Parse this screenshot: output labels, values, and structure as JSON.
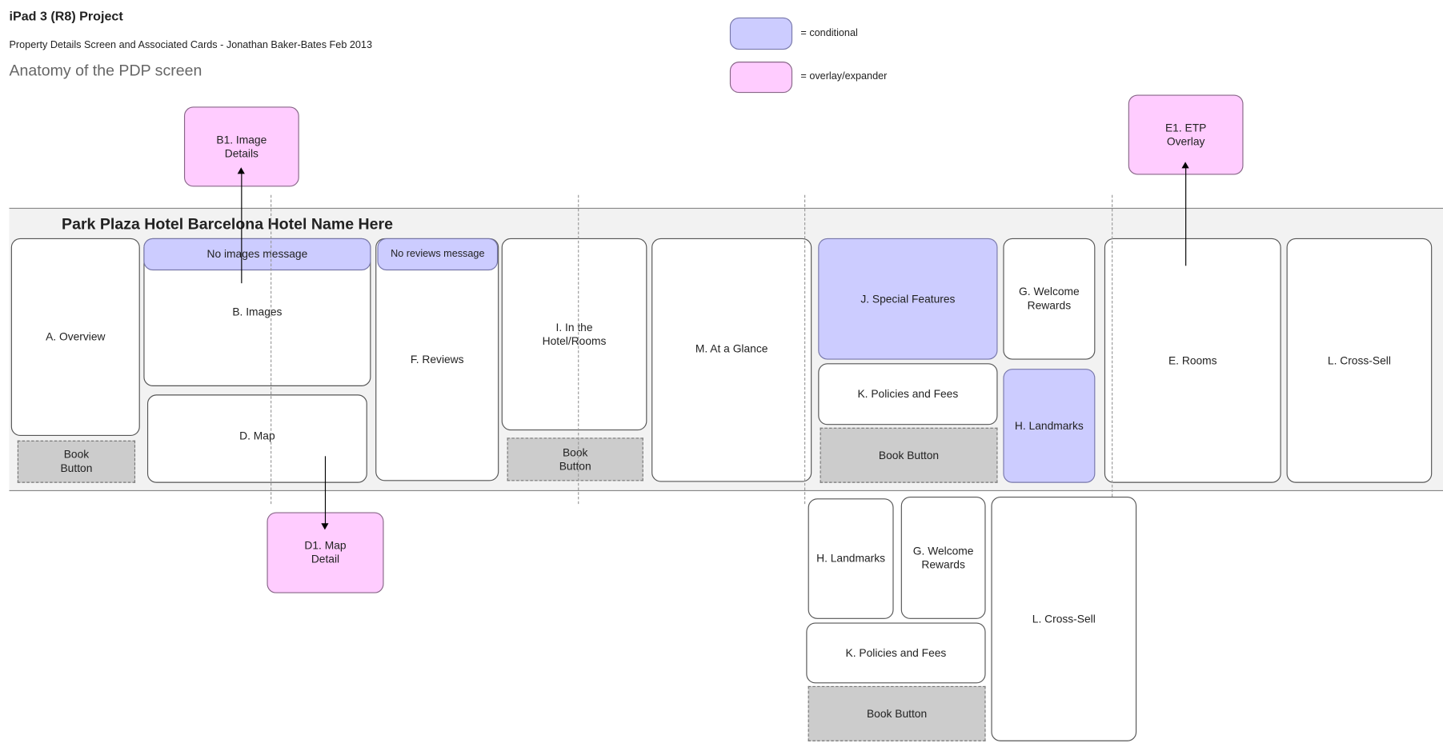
{
  "header": {
    "title": "iPad 3 (R8) Project",
    "subtitle": "Property Details Screen and Associated Cards - Jonathan Baker-Bates Feb 2013",
    "heading": "Anatomy of the PDP screen"
  },
  "legend": {
    "conditional": {
      "label": "= conditional",
      "color": "#ccccff"
    },
    "overlay": {
      "label": "= overlay/expander",
      "color": "#ffccff"
    }
  },
  "screen": {
    "hotel_name": "Park Plaza Hotel Barcelona Hotel Name Here",
    "cards": {
      "overview": "A. Overview",
      "overview_book": "Book\nButton",
      "no_images": "No images message",
      "images": "B. Images",
      "map": "D. Map",
      "no_reviews": "No reviews message",
      "reviews": "F. Reviews",
      "in_hotel": "I. In the\nHotel/Rooms",
      "in_hotel_book": "Book\nButton",
      "at_a_glance": "M. At a Glance",
      "special_features": "J. Special Features",
      "welcome_rewards": "G. Welcome\nRewards",
      "policies": "K. Policies and Fees",
      "book_button": "Book Button",
      "landmarks": "H. Landmarks",
      "rooms": "E. Rooms",
      "cross_sell": "L. Cross-Sell"
    }
  },
  "overlays": {
    "image_details": "B1. Image\nDetails",
    "etp_overlay": "E1. ETP\nOverlay",
    "map_detail": "D1. Map\nDetail"
  },
  "alt_layout": {
    "landmarks": "H. Landmarks",
    "welcome_rewards": "G. Welcome\nRewards",
    "cross_sell": "L. Cross-Sell",
    "policies": "K. Policies and Fees",
    "book_button": "Book Button"
  }
}
